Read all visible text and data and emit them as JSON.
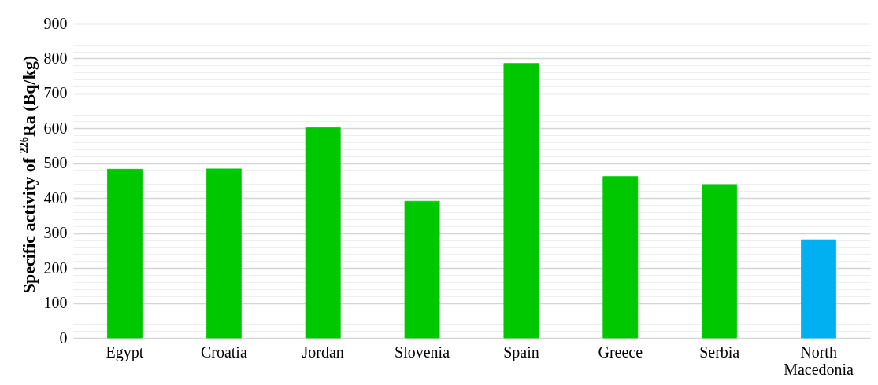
{
  "chart_data": {
    "type": "bar",
    "ylabel": "Specific activity of $^{226}$Ra (Bq/kg)",
    "categories": [
      "Egypt",
      "Croatia",
      "Jordan",
      "Slovenia",
      "Spain",
      "Greece",
      "Serbia",
      "North Macedonia"
    ],
    "values": [
      483,
      484,
      602,
      391,
      786,
      462,
      439,
      281
    ],
    "colors": [
      "#00c800",
      "#00c800",
      "#00c800",
      "#00c800",
      "#00c800",
      "#00c800",
      "#00c800",
      "#00b0f0"
    ],
    "ylim": [
      0,
      900
    ],
    "yticks": [
      0,
      {
        "value": 20,
        "label": null
      },
      {
        "value": 40,
        "label": null
      },
      {
        "value": 60,
        "label": null
      },
      {
        "value": 80,
        "label": null
      },
      100,
      {
        "value": 120,
        "label": null
      },
      {
        "value": 140,
        "label": null
      },
      {
        "value": 160,
        "label": null
      },
      {
        "value": 180,
        "label": null
      },
      200,
      {
        "value": 220,
        "label": null
      },
      {
        "value": 240,
        "label": null
      },
      {
        "value": 260,
        "label": null
      },
      {
        "value": 280,
        "label": null
      },
      300,
      {
        "value": 320,
        "label": null
      },
      {
        "value": 340,
        "label": null
      },
      {
        "value": 360,
        "label": null
      },
      {
        "value": 380,
        "label": null
      },
      400,
      {
        "value": 420,
        "label": null
      },
      {
        "value": 440,
        "label": null
      },
      {
        "value": 460,
        "label": null
      },
      {
        "value": 480,
        "label": null
      },
      500,
      {
        "value": 520,
        "label": null
      },
      {
        "value": 540,
        "label": null
      },
      {
        "value": 560,
        "label": null
      },
      {
        "value": 580,
        "label": null
      },
      600,
      {
        "value": 620,
        "label": null
      },
      {
        "value": 640,
        "label": null
      },
      {
        "value": 660,
        "label": null
      },
      {
        "value": 680,
        "label": null
      },
      700,
      {
        "value": 720,
        "label": null
      },
      {
        "value": 740,
        "label": null
      },
      {
        "value": 760,
        "label": null
      },
      {
        "value": 780,
        "label": null
      },
      800,
      {
        "value": 820,
        "label": null
      },
      {
        "value": 840,
        "label": null
      },
      {
        "value": 860,
        "label": null
      },
      {
        "value": 880,
        "label": null
      },
      900
    ],
    "grid": "y"
  }
}
